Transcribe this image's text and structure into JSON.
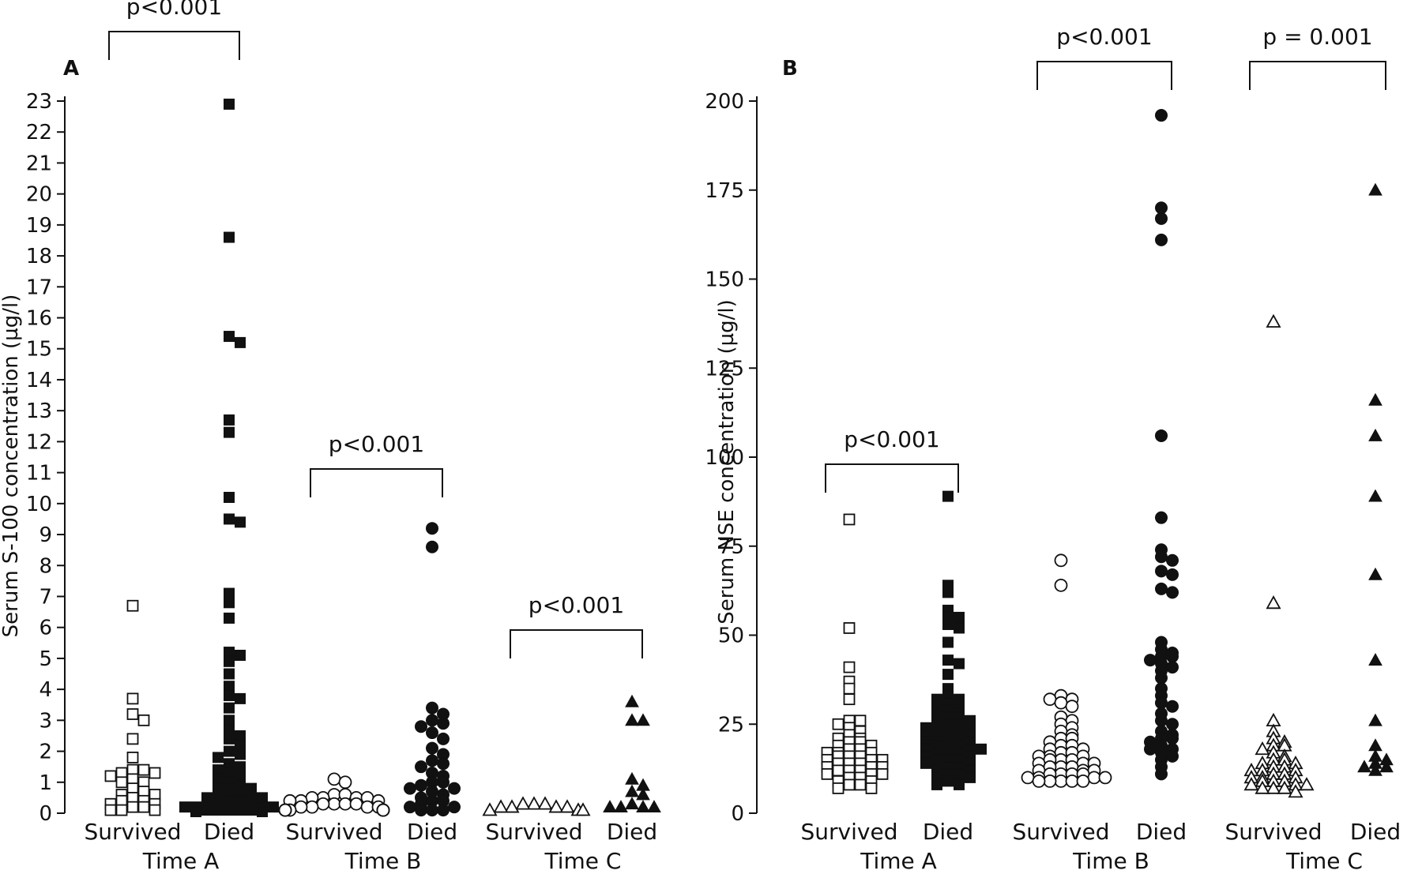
{
  "chart_data": [
    {
      "panel_label": "A",
      "type": "scatter",
      "ylabel": "Serum S-100 concentration (µg/l)",
      "ylim": [
        0,
        23
      ],
      "yticks": [
        0,
        1,
        2,
        3,
        4,
        5,
        6,
        7,
        8,
        9,
        10,
        11,
        12,
        13,
        14,
        15,
        16,
        17,
        18,
        19,
        20,
        21,
        22,
        23
      ],
      "groups": [
        {
          "name": "Survived",
          "time": "Time A",
          "marker": "square",
          "filled": false,
          "values": [
            6.7,
            3.7,
            3.2,
            3.0,
            2.4,
            1.8,
            1.4,
            1.4,
            1.3,
            1.3,
            1.2,
            1.1,
            1.0,
            1.0,
            0.8,
            0.7,
            0.6,
            0.6,
            0.5,
            0.4,
            0.4,
            0.3,
            0.3,
            0.2,
            0.2,
            0.1,
            0.1,
            0.1
          ]
        },
        {
          "name": "Died",
          "time": "Time A",
          "marker": "square",
          "filled": true,
          "values": [
            22.9,
            18.6,
            15.4,
            15.2,
            12.7,
            12.3,
            10.2,
            9.5,
            9.4,
            7.1,
            6.8,
            6.3,
            5.2,
            5.1,
            4.9,
            4.5,
            4.1,
            3.8,
            3.7,
            3.4,
            3.0,
            2.7,
            2.5,
            2.4,
            2.2,
            2.0,
            1.9,
            1.8,
            1.6,
            1.5,
            1.4,
            1.3,
            1.2,
            1.1,
            1.0,
            0.9,
            0.8,
            0.8,
            0.7,
            0.7,
            0.6,
            0.6,
            0.5,
            0.5,
            0.4,
            0.4,
            0.3,
            0.3,
            0.3,
            0.2,
            0.2,
            0.2,
            0.2,
            0.1,
            0.1,
            0.1,
            0.1,
            0.1,
            0.05,
            0.05
          ]
        },
        {
          "name": "Survived",
          "time": "Time B",
          "marker": "circle",
          "filled": false,
          "values": [
            1.1,
            1.0,
            0.6,
            0.6,
            0.5,
            0.5,
            0.5,
            0.5,
            0.4,
            0.4,
            0.4,
            0.3,
            0.3,
            0.3,
            0.3,
            0.2,
            0.2,
            0.2,
            0.2,
            0.1,
            0.1,
            0.1,
            0.1,
            0.1,
            0.1,
            0.1,
            0.1,
            0.1,
            0.1,
            0.1
          ]
        },
        {
          "name": "Died",
          "time": "Time B",
          "marker": "circle",
          "filled": true,
          "values": [
            9.2,
            8.6,
            3.4,
            3.2,
            3.0,
            2.9,
            2.8,
            2.6,
            2.4,
            2.1,
            1.9,
            1.7,
            1.6,
            1.5,
            1.3,
            1.2,
            1.0,
            1.0,
            0.9,
            0.8,
            0.8,
            0.7,
            0.6,
            0.5,
            0.4,
            0.4,
            0.3,
            0.2,
            0.2,
            0.1,
            0.1,
            0.1
          ]
        },
        {
          "name": "Survived",
          "time": "Time C",
          "marker": "triangle",
          "filled": false,
          "values": [
            0.3,
            0.3,
            0.3,
            0.2,
            0.2,
            0.2,
            0.2,
            0.1,
            0.1,
            0.1
          ]
        },
        {
          "name": "Died",
          "time": "Time C",
          "marker": "triangle",
          "filled": true,
          "values": [
            3.6,
            3.0,
            3.0,
            1.1,
            0.9,
            0.7,
            0.6,
            0.3,
            0.2,
            0.2,
            0.2,
            0.2
          ]
        }
      ],
      "comparisons": [
        {
          "text": "p<0.001",
          "groups": [
            0,
            1
          ]
        },
        {
          "text": "p<0.001",
          "groups": [
            2,
            3
          ]
        },
        {
          "text": "p<0.001",
          "groups": [
            4,
            5
          ]
        }
      ],
      "time_labels": [
        "Time A",
        "Time B",
        "Time C"
      ]
    },
    {
      "panel_label": "B",
      "type": "scatter",
      "ylabel": "Serum NSE concentration (µg/l)",
      "ylim": [
        0,
        200
      ],
      "yticks": [
        0,
        25,
        50,
        75,
        100,
        125,
        150,
        175,
        200
      ],
      "groups": [
        {
          "name": "Survived",
          "time": "Time A",
          "marker": "square",
          "filled": false,
          "values": [
            82.5,
            52,
            41,
            37,
            35,
            32,
            26,
            26,
            25,
            24,
            23,
            22,
            21,
            21,
            20,
            20,
            19,
            19,
            18,
            18,
            17,
            17,
            17,
            16,
            16,
            16,
            15,
            15,
            15,
            14,
            14,
            14,
            13,
            13,
            13,
            12,
            12,
            12,
            11,
            11,
            11,
            10,
            10,
            9,
            9,
            8,
            8,
            7,
            7
          ]
        },
        {
          "name": "Died",
          "time": "Time A",
          "marker": "square",
          "filled": true,
          "values": [
            89,
            64,
            62,
            57,
            55,
            55,
            53,
            52,
            48,
            43,
            42,
            39,
            35,
            33,
            32,
            32,
            31,
            30,
            30,
            29,
            28,
            28,
            27,
            27,
            26,
            26,
            25,
            25,
            24,
            24,
            24,
            23,
            23,
            22,
            22,
            22,
            21,
            21,
            20,
            20,
            20,
            19,
            19,
            19,
            18,
            18,
            18,
            17,
            17,
            17,
            16,
            16,
            15,
            15,
            15,
            14,
            14,
            13,
            13,
            12,
            12,
            11,
            11,
            10,
            10,
            9,
            8,
            8
          ]
        },
        {
          "name": "Survived",
          "time": "Time B",
          "marker": "circle",
          "filled": false,
          "values": [
            71,
            64,
            33,
            32,
            32,
            31,
            30,
            27,
            26,
            25,
            24,
            23,
            22,
            21,
            21,
            20,
            19,
            19,
            18,
            18,
            17,
            17,
            16,
            16,
            16,
            15,
            15,
            15,
            14,
            14,
            14,
            13,
            13,
            13,
            12,
            12,
            12,
            11,
            11,
            11,
            11,
            10,
            10,
            10,
            10,
            9,
            9,
            9,
            9,
            9
          ]
        },
        {
          "name": "Died",
          "time": "Time B",
          "marker": "circle",
          "filled": true,
          "values": [
            196,
            170,
            167,
            161,
            106,
            83,
            74,
            72,
            71,
            68,
            67,
            63,
            62,
            48,
            46,
            45,
            44,
            44,
            43,
            42,
            41,
            40,
            38,
            35,
            33,
            31,
            30,
            28,
            26,
            25,
            23,
            22,
            21,
            21,
            20,
            19,
            18,
            18,
            17,
            16,
            15,
            13,
            11
          ]
        },
        {
          "name": "Survived",
          "time": "Time C",
          "marker": "triangle",
          "filled": false,
          "values": [
            138,
            59,
            26,
            23,
            21,
            20,
            19,
            19,
            18,
            17,
            16,
            15,
            15,
            14,
            14,
            13,
            13,
            12,
            12,
            12,
            11,
            11,
            10,
            10,
            10,
            9,
            9,
            9,
            8,
            8,
            8,
            7,
            7,
            7,
            6
          ]
        },
        {
          "name": "Died",
          "time": "Time C",
          "marker": "triangle",
          "filled": true,
          "values": [
            175,
            116,
            106,
            89,
            67,
            43,
            26,
            19,
            16,
            15,
            14,
            13,
            13,
            12
          ]
        }
      ],
      "comparisons": [
        {
          "text": "p<0.001",
          "groups": [
            0,
            1
          ]
        },
        {
          "text": "p<0.001",
          "groups": [
            2,
            3
          ]
        },
        {
          "text": "p = 0.001",
          "groups": [
            4,
            5
          ]
        }
      ],
      "time_labels": [
        "Time A",
        "Time B",
        "Time C"
      ]
    }
  ]
}
